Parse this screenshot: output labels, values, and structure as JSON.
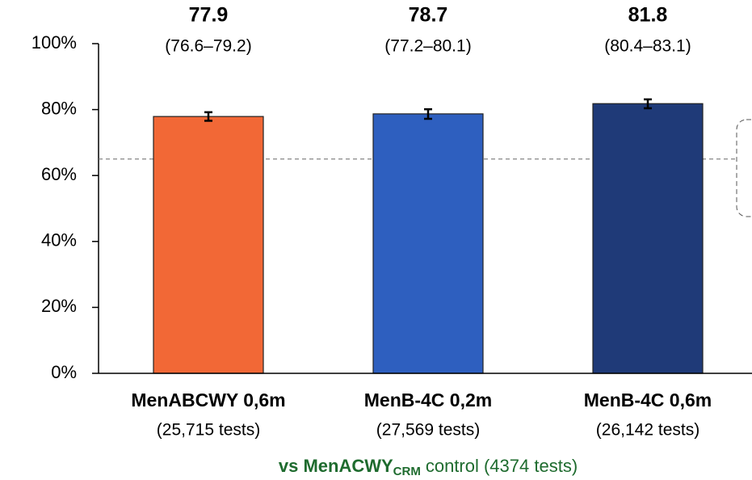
{
  "chart_data": {
    "type": "bar",
    "categories": [
      "MenABCWY 0,6m",
      "MenB-4C 0,2m",
      "MenB-4C 0,6m"
    ],
    "category_notes": [
      "(25,715 tests)",
      "(27,569 tests)",
      "(26,142 tests)"
    ],
    "values": [
      77.9,
      78.7,
      81.8
    ],
    "lower": [
      76.6,
      77.2,
      80.4
    ],
    "upper": [
      79.2,
      80.1,
      83.1
    ],
    "ci_labels": [
      "(76.6–79.2)",
      "(77.2–80.1)",
      "(80.4–83.1)"
    ],
    "colors": [
      "#f26836",
      "#2e5fbf",
      "#1f3a78"
    ],
    "reference_line": 65,
    "ylim": [
      0,
      100
    ],
    "yticks": [
      {
        "value": 0,
        "label": "0%"
      },
      {
        "value": 20,
        "label": "20%"
      },
      {
        "value": 40,
        "label": "40%"
      },
      {
        "value": 60,
        "label": "60%"
      },
      {
        "value": 80,
        "label": "80%"
      },
      {
        "value": 100,
        "label": "100%"
      }
    ],
    "footnote": {
      "bold": "vs MenACWY",
      "sub": "CRM",
      "rest": "control (4374 tests)"
    }
  }
}
